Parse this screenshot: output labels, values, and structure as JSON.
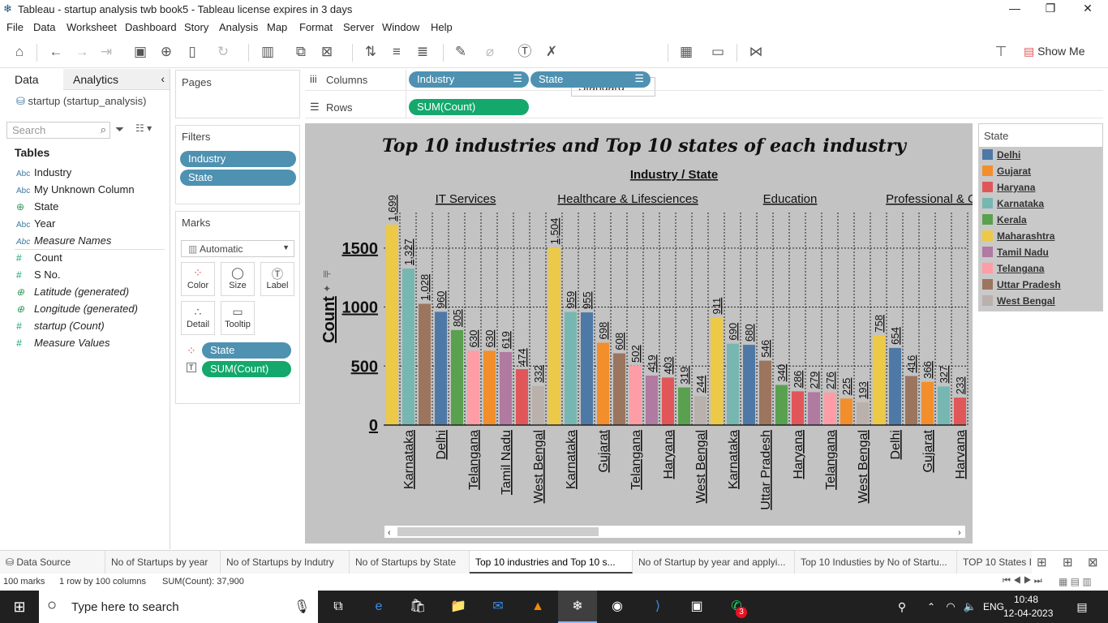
{
  "window": {
    "title": "Tableau - startup analysis twb book5 - Tableau license expires in 3 days"
  },
  "menu": [
    "File",
    "Data",
    "Worksheet",
    "Dashboard",
    "Story",
    "Analysis",
    "Map",
    "Format",
    "Server",
    "Window",
    "Help"
  ],
  "toolbar": {
    "fit": "Standard",
    "show_me": "Show Me"
  },
  "left": {
    "tab_data": "Data",
    "tab_analytics": "Analytics",
    "datasource": "startup (startup_analysis)",
    "search_placeholder": "Search",
    "tables_label": "Tables",
    "fields": [
      {
        "type": "Abc",
        "name": "Industry",
        "kind": "dim"
      },
      {
        "type": "Abc",
        "name": "My Unknown Column",
        "kind": "dim"
      },
      {
        "type": "geo",
        "name": "State",
        "kind": "geo"
      },
      {
        "type": "Abc",
        "name": "Year",
        "kind": "dim"
      },
      {
        "type": "Abc",
        "name": "Measure Names",
        "kind": "dimit"
      },
      {
        "type": "#",
        "name": "Count",
        "kind": "meas"
      },
      {
        "type": "#",
        "name": "S No.",
        "kind": "meas"
      },
      {
        "type": "geo",
        "name": "Latitude (generated)",
        "kind": "geoit"
      },
      {
        "type": "geo",
        "name": "Longitude (generated)",
        "kind": "geoit"
      },
      {
        "type": "#",
        "name": "startup (Count)",
        "kind": "measit"
      },
      {
        "type": "#",
        "name": "Measure Values",
        "kind": "measit"
      }
    ]
  },
  "shelves": {
    "pages": "Pages",
    "filters": "Filters",
    "filter_pills": [
      "Industry",
      "State"
    ],
    "marks": "Marks",
    "marks_type": "Automatic",
    "mark_buttons": [
      "Color",
      "Size",
      "Label",
      "Detail",
      "Tooltip"
    ],
    "mark_pills": [
      "State",
      "SUM(Count)"
    ],
    "columns_label": "Columns",
    "rows_label": "Rows",
    "column_pills": [
      "Industry",
      "State"
    ],
    "row_pill": "SUM(Count)"
  },
  "legend": {
    "title": "State",
    "items": [
      {
        "name": "Delhi",
        "color": "#4e79a7"
      },
      {
        "name": "Gujarat",
        "color": "#f28e2b"
      },
      {
        "name": "Haryana",
        "color": "#e15759"
      },
      {
        "name": "Karnataka",
        "color": "#76b7b2"
      },
      {
        "name": "Kerala",
        "color": "#59a14f"
      },
      {
        "name": "Maharashtra",
        "color": "#edc948"
      },
      {
        "name": "Tamil Nadu",
        "color": "#b07aa1"
      },
      {
        "name": "Telangana",
        "color": "#ff9da7"
      },
      {
        "name": "Uttar Pradesh",
        "color": "#9c755f"
      },
      {
        "name": "West Bengal",
        "color": "#bab0ac"
      }
    ]
  },
  "chart_data": {
    "type": "bar",
    "title": "Top 10 industries and Top 10 states of each industry",
    "header": "Industry / State",
    "ylabel": "Count",
    "ylim": [
      0,
      1650
    ],
    "yticks": [
      0,
      500,
      1000,
      1500
    ],
    "industries": [
      {
        "name": "IT Services",
        "bars": [
          {
            "state": "Maharashtra",
            "value": 1699
          },
          {
            "state": "Karnataka",
            "value": 1327
          },
          {
            "state": "Uttar Pradesh",
            "value": 1028
          },
          {
            "state": "Delhi",
            "value": 960
          },
          {
            "state": "Kerala",
            "value": 805
          },
          {
            "state": "Telangana",
            "value": 630
          },
          {
            "state": "Gujarat",
            "value": 630
          },
          {
            "state": "Tamil Nadu",
            "value": 619
          },
          {
            "state": "Haryana",
            "value": 474
          },
          {
            "state": "West Bengal",
            "value": 332
          }
        ]
      },
      {
        "name": "Healthcare & Lifesciences",
        "bars": [
          {
            "state": "Maharashtra",
            "value": 1504
          },
          {
            "state": "Karnataka",
            "value": 959
          },
          {
            "state": "Delhi",
            "value": 955
          },
          {
            "state": "Gujarat",
            "value": 698
          },
          {
            "state": "Uttar Pradesh",
            "value": 608
          },
          {
            "state": "Telangana",
            "value": 502
          },
          {
            "state": "Tamil Nadu",
            "value": 419
          },
          {
            "state": "Haryana",
            "value": 403
          },
          {
            "state": "Kerala",
            "value": 319
          },
          {
            "state": "West Bengal",
            "value": 244
          }
        ]
      },
      {
        "name": "Education",
        "bars": [
          {
            "state": "Maharashtra",
            "value": 911
          },
          {
            "state": "Karnataka",
            "value": 690
          },
          {
            "state": "Delhi",
            "value": 680
          },
          {
            "state": "Uttar Pradesh",
            "value": 546
          },
          {
            "state": "Kerala",
            "value": 340
          },
          {
            "state": "Haryana",
            "value": 286
          },
          {
            "state": "Tamil Nadu",
            "value": 279
          },
          {
            "state": "Telangana",
            "value": 276
          },
          {
            "state": "Gujarat",
            "value": 225
          },
          {
            "state": "West Bengal",
            "value": 193
          }
        ]
      },
      {
        "name": "Professional & C",
        "bars": [
          {
            "state": "Maharashtra",
            "value": 758
          },
          {
            "state": "Delhi",
            "value": 654
          },
          {
            "state": "Uttar Pradesh",
            "value": 416
          },
          {
            "state": "Gujarat",
            "value": 366
          },
          {
            "state": "Karnataka",
            "value": 327
          },
          {
            "state": "Haryana",
            "value": 233
          }
        ]
      }
    ],
    "visible_xlabels": [
      "Karnataka",
      "Delhi",
      "Telangana",
      "Tamil Nadu",
      "West Bengal",
      "Karnataka",
      "Gujarat",
      "Telangana",
      "Haryana",
      "West Bengal",
      "Karnataka",
      "Uttar Pradesh",
      "Haryana",
      "Telangana",
      "West Bengal",
      "Delhi",
      "Gujarat",
      "Harvana"
    ]
  },
  "sheet_tabs": [
    "Data Source",
    "No of Startups by year",
    "No of Startups by Indutry",
    "No of Startups by State",
    "Top 10 industries and Top 10 s...",
    "No of Startup by year and applyi...",
    "Top 10 Industies by No of Startu...",
    "TOP 10 States I"
  ],
  "status": {
    "marks": "100 marks",
    "rows": "1 row by 100 columns",
    "sum": "SUM(Count): 37,900"
  },
  "taskbar": {
    "search": "Type here to search",
    "lang": "ENG",
    "time": "10:48",
    "date": "12-04-2023",
    "badge": "3"
  }
}
